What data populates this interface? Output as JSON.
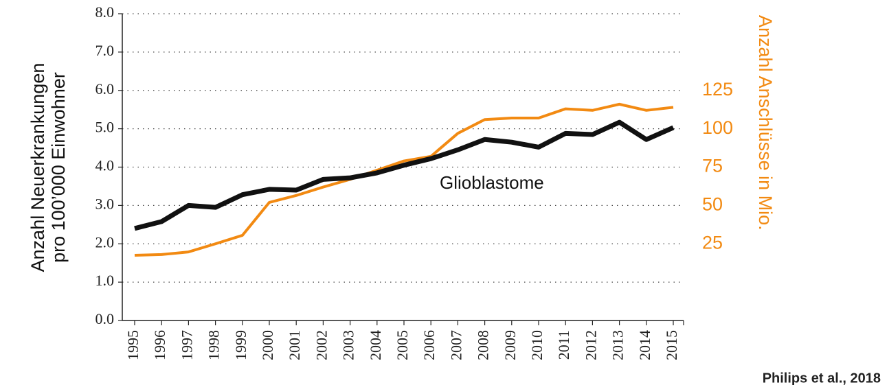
{
  "chart_data": {
    "type": "line",
    "categories": [
      "1995",
      "1996",
      "1997",
      "1998",
      "1999",
      "2000",
      "2001",
      "2002",
      "2003",
      "2004",
      "2005",
      "2006",
      "2007",
      "2008",
      "2009",
      "2010",
      "2011",
      "2012",
      "2013",
      "2014",
      "2015"
    ],
    "series": [
      {
        "color": "#111111",
        "values": [
          2.4,
          2.58,
          3.0,
          2.95,
          3.28,
          3.42,
          3.4,
          3.68,
          3.72,
          3.85,
          4.05,
          4.22,
          4.45,
          4.72,
          4.65,
          4.52,
          4.88,
          4.85,
          5.17,
          4.72,
          5.03
        ]
      },
      {
        "color": "#f28a12",
        "axis": "y2",
        "values": [
          17.5,
          18,
          19.7,
          25,
          30.5,
          52,
          56.5,
          62,
          67,
          73,
          79,
          82,
          97,
          106,
          107,
          107,
          113,
          112,
          116,
          112,
          114
        ]
      }
    ],
    "ylabel": [
      "Anzahl Neuerkrankungen",
      "pro 100’000 Einwohner"
    ],
    "y2label": "Anzahl Anschlüsse in Mio.",
    "annotation": "Glioblastome",
    "source": "Philips et al., 2018",
    "ylim": [
      0,
      8
    ],
    "yticks": [
      {
        "value": 0,
        "label": "0.0"
      },
      {
        "value": 1,
        "label": "1.0"
      },
      {
        "value": 2,
        "label": "2.0"
      },
      {
        "value": 3,
        "label": "3.0"
      },
      {
        "value": 4,
        "label": "4.0"
      },
      {
        "value": 5,
        "label": "5.0"
      },
      {
        "value": 6,
        "label": "6.0"
      },
      {
        "value": 7,
        "label": "7.0"
      },
      {
        "value": 8,
        "label": "8.0"
      }
    ],
    "y2lim": [
      -25,
      175
    ],
    "y2ticks": [
      25,
      50,
      75,
      100,
      125
    ],
    "y2color": "#f28a12",
    "grid": true
  }
}
